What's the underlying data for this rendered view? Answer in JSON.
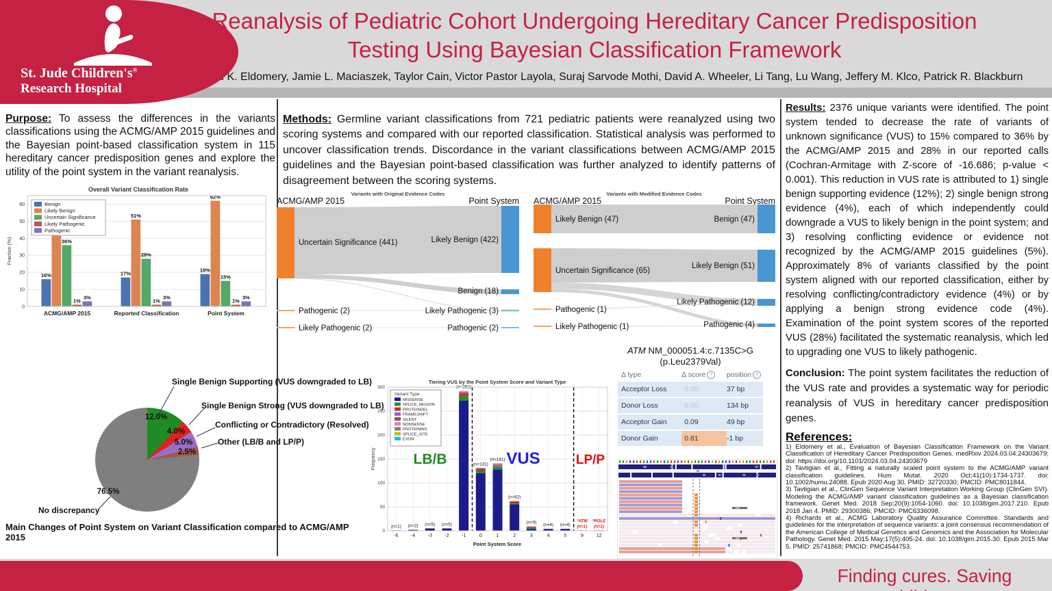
{
  "header": {
    "logo_line1": "St. Jude Children's",
    "logo_registered": "®",
    "logo_line2": "Research Hospital",
    "title_line1": "Reanalysis of Pediatric Cohort Undergoing Hereditary Cancer Predisposition",
    "title_line2": "Testing Using Bayesian Classification Framework",
    "authors": "Mohammad K. Eldomery, Jamie L. Maciaszek, Taylor Cain, Victor Pastor Layola, Suraj Sarvode Mothi, David A. Wheeler, Li Tang, Lu Wang, Jeffery M. Klco, Patrick R. Blackburn"
  },
  "sections": {
    "purpose_label": "Purpose:",
    "purpose_text": "To assess the differences in the variants classifications using the ACMG/AMP 2015 guidelines and the Bayesian point-based classification system in 115 hereditary cancer predisposition genes and explore the utility of the point system in the variant reanalysis.",
    "methods_label": "Methods:",
    "methods_text": "Germline variant classifications from 721 pediatric patients were reanalyzed using two scoring systems and compared with our reported classification. Statistical analysis was performed to uncover classification trends. Discordance in the variant classifications between ACMG/AMP 2015 guidelines and the Bayesian point-based classification was further analyzed to identify patterns of disagreement between the scoring systems.",
    "results_label": "Results:",
    "results_text": "2376 unique variants were identified. The point system tended to decrease the rate of variants of unknown significance (VUS) to 15% compared to 36% by the ACMG/AMP 2015 and 28% in our reported calls (Cochran-Armitage with Z-score of -16.686; p-value < 0.001). This reduction in VUS rate is attributed to 1) single benign supporting evidence (12%); 2) single benign strong evidence (4%), each of which independently could downgrade a VUS to likely benign in the point system; and 3) resolving conflicting evidence or evidence not recognized by the ACMG/AMP 2015 guidelines (5%). Approximately 8% of variants classified by the point system aligned with our reported classification, either by resolving conflicting/contradictory evidence (4%) or by applying a benign strong evidence code (4%). Examination of the point system scores of the reported VUS (28%) facilitated the systematic reanalysis, which led to upgrading one VUS to likely pathogenic.",
    "conclusion_label": "Conclusion:",
    "conclusion_text": "The point system facilitates the reduction of the VUS rate and provides a systematic way for periodic reanalysis of VUS in hereditary cancer predisposition genes.",
    "references_label": "References:",
    "references": [
      "1) Eldomery et al., Evaluation of Bayesian Classification Framework on the Variant Classification of Hereditary Cancer Predisposition Genes. medRxiv 2024.03.04.24303679; doi: https://doi.org/10.1101/2024.03.04.24303679",
      "2) Tavtigian et al., Fitting a naturally scaled point system to the ACMG/AMP variant classification guidelines. Hum Mutat. 2020 Oct;41(10):1734-1737. doi: 10.1002/humu.24088. Epub 2020 Aug 30. PMID: 32720330; PMCID: PMC8011844.",
      "3) Tavtigian et al., ClinGen Sequence Variant Interpretation Working Group (ClinGen SVI). Modeling the ACMG/AMP variant classification guidelines as a Bayesian classification framework. Genet Med. 2018 Sep;20(9):1054-1060. doi: 10.1038/gim.2017.210. Epub 2018 Jan 4. PMID: 29300386; PMCID: PMC6336098.",
      "4) Richards et al., ACMG Laboratory Quality Assurance Committee. Standards and guidelines for the interpretation of sequence variants: a joint consensus recommendation of the American College of Medical Genetics and Genomics and the Association for Molecular Pathology. Genet Med. 2015 May;17(5):405-24. doi: 10.1038/gim.2015.30. Epub 2015 Mar 5. PMID: 25741868; PMCID: PMC4544753."
    ]
  },
  "footer": {
    "tagline": "Finding cures. Saving children."
  },
  "colors": {
    "brand_red": "#c52143",
    "header_gray": "#d9d9d9",
    "divider_gray": "#b5b5b5"
  },
  "chart_data": [
    {
      "id": "overall_classification",
      "type": "bar",
      "title": "Overall Variant Classification Rate",
      "ylabel": "Fraction (%)",
      "ylim": [
        0,
        65
      ],
      "yticks": [
        0,
        10,
        20,
        30,
        40,
        50,
        60
      ],
      "categories": [
        "ACMG/AMP 2015",
        "Reported Classification",
        "Point System"
      ],
      "series": [
        {
          "name": "Benign",
          "color": "#4c72b0",
          "values": [
            16,
            17,
            19
          ]
        },
        {
          "name": "Likely Benign",
          "color": "#dd8452",
          "values": [
            44,
            51,
            62
          ]
        },
        {
          "name": "Uncertain Significance",
          "color": "#55a868",
          "values": [
            36,
            28,
            15
          ]
        },
        {
          "name": "Likely Pathogenic",
          "color": "#c44e52",
          "values": [
            1,
            1,
            1
          ]
        },
        {
          "name": "Pathogenic",
          "color": "#8172b3",
          "values": [
            3,
            3,
            3
          ]
        }
      ],
      "bar_label_suffix": "%",
      "legend_position": "upper left",
      "grid": true
    },
    {
      "id": "variants_original_codes",
      "type": "sankey",
      "title": "Variants with Original Evidence Codes",
      "left_title": "ACMG/AMP 2015",
      "right_title": "Point System",
      "left_nodes": [
        "Uncertain Significance (441)",
        "Pathogenic (2)",
        "Likely Pathogenic (2)"
      ],
      "right_nodes": [
        "Likely Benign (422)",
        "Benign (18)",
        "Likely Pathogenic (3)",
        "Pathogenic (2)"
      ],
      "flows": [
        [
          "Uncertain Significance",
          "Likely Benign"
        ],
        [
          "Uncertain Significance",
          "Benign"
        ],
        [
          "Uncertain Significance",
          "Likely Pathogenic"
        ],
        [
          "Pathogenic",
          "Likely Pathogenic"
        ],
        [
          "Likely Pathogenic",
          "Pathogenic"
        ]
      ]
    },
    {
      "id": "variants_modified_codes",
      "type": "sankey",
      "title": "Variants with Modified Evidence Codes",
      "left_title": "ACMG/AMP 2015",
      "right_title": "Point System",
      "left_nodes": [
        "Likely Benign (47)",
        "Uncertain Significance (65)",
        "Pathogenic (1)",
        "Likely Pathogenic (1)"
      ],
      "right_nodes": [
        "Benign (47)",
        "Likely Benign (51)",
        "Likely Pathogenic (12)",
        "Pathogenic (4)"
      ],
      "flows": [
        [
          "Likely Benign",
          "Benign"
        ],
        [
          "Uncertain Significance",
          "Likely Benign"
        ],
        [
          "Uncertain Significance",
          "Likely Pathogenic"
        ],
        [
          "Uncertain Significance",
          "Pathogenic"
        ],
        [
          "Pathogenic",
          "Likely Pathogenic"
        ],
        [
          "Likely Pathogenic",
          "Pathogenic"
        ]
      ]
    },
    {
      "id": "point_system_changes",
      "type": "pie",
      "title": "Main Changes of Point System on Variant Classification compared to ACMG/AMP 2015",
      "slices": [
        {
          "label": "Single Benign Supporting (VUS downgraded to LB)",
          "value": 12.0,
          "pct_label": "12.0%",
          "color": "#1f8b24"
        },
        {
          "label": "Single Benign Strong (VUS downgraded to LB)",
          "value": 4.0,
          "pct_label": "4.0%",
          "color": "#dd2222"
        },
        {
          "label": "Conflicting or Contradictory (Resolved)",
          "value": 5.0,
          "pct_label": "5.0%",
          "color": "#9a6fc3"
        },
        {
          "label": "Other (LB/B and LP/P)",
          "value": 2.5,
          "pct_label": "2.5%",
          "color": "#a05a4a"
        },
        {
          "label": "No discrepancy",
          "value": 76.5,
          "pct_label": "76.5%",
          "color": "#7f7f7f"
        }
      ]
    },
    {
      "id": "tiering_vus",
      "type": "stacked_bar",
      "title": "Tiering VUS by the Point System Score and Variant Type",
      "xlabel": "Point System Score",
      "ylabel": "Frequency",
      "ylim": [
        0,
        300
      ],
      "yticks": [
        0,
        50,
        100,
        150,
        200,
        250,
        300
      ],
      "legend_title": "Variant Type",
      "variant_types": [
        {
          "name": "MISSENSE",
          "color": "#1b1b8a"
        },
        {
          "name": "SPLICE_REGION",
          "color": "#2e8b2e"
        },
        {
          "name": "PROTEINDEL",
          "color": "#d62728"
        },
        {
          "name": "FRAMESHIFT",
          "color": "#9467bd"
        },
        {
          "name": "SILENT",
          "color": "#8c564b"
        },
        {
          "name": "NONSENSE",
          "color": "#e377c2"
        },
        {
          "name": "PROTEININS",
          "color": "#7f7f7f"
        },
        {
          "name": "SPLICE_SITE",
          "color": "#bcbd22"
        },
        {
          "name": "EXON",
          "color": "#17becf"
        }
      ],
      "regions": [
        {
          "label": "LB/B",
          "color": "#1f8b1f"
        },
        {
          "label": "VUS",
          "color": "#2020dd"
        },
        {
          "label": "LP/P",
          "color": "#e01010"
        }
      ],
      "bars": [
        {
          "score": "-6",
          "n": 1,
          "label": "(n=1)",
          "segments": {
            "MISSENSE": 1
          }
        },
        {
          "score": "-4",
          "n": 2,
          "label": "(n=2)",
          "segments": {
            "MISSENSE": 2
          }
        },
        {
          "score": "-3",
          "n": 5,
          "label": "(n=5)",
          "segments": {
            "MISSENSE": 5
          }
        },
        {
          "score": "-2",
          "n": 5,
          "label": "(n=5)",
          "segments": {
            "MISSENSE": 5
          }
        },
        {
          "score": "-1",
          "n": 292,
          "label": "(n=292)",
          "segments": {
            "MISSENSE": 272,
            "SPLICE_REGION": 10,
            "PROTEINDEL": 4,
            "SILENT": 3,
            "NONSENSE": 3
          }
        },
        {
          "score": "0",
          "n": 131,
          "label": "(n=131)",
          "segments": {
            "MISSENSE": 120,
            "SPLICE_REGION": 5,
            "PROTEINDEL": 3,
            "SILENT": 3
          }
        },
        {
          "score": "1",
          "n": 141,
          "label": "(n=141)",
          "segments": {
            "MISSENSE": 128,
            "SPLICE_REGION": 6,
            "NONSENSE": 3,
            "FRAMESHIFT": 2,
            "SILENT": 2
          }
        },
        {
          "score": "2",
          "n": 62,
          "label": "(n=62)",
          "segments": {
            "MISSENSE": 55,
            "PROTEINDEL": 3,
            "SPLICE_REGION": 2,
            "SILENT": 2
          }
        },
        {
          "score": "3",
          "n": 9,
          "label": "(n=9)",
          "segments": {
            "MISSENSE": 4,
            "SILENT": 3,
            "SPLICE_REGION": 2
          }
        },
        {
          "score": "4",
          "n": 4,
          "label": "(n=4)",
          "segments": {
            "MISSENSE": 4
          }
        },
        {
          "score": "5",
          "n": 4,
          "label": "(n=4)",
          "segments": {
            "MISSENSE": 4
          }
        },
        {
          "score": "9",
          "n": 1,
          "label": "(n=1)",
          "annotation": "*ATM",
          "segments": {
            "MISSENSE": 1
          }
        },
        {
          "score": "12",
          "n": 1,
          "label": "(n=1)",
          "annotation": "*POLE",
          "segments": {
            "MISSENSE": 1
          }
        }
      ]
    },
    {
      "id": "spliceai_scores",
      "type": "table",
      "gene": "ATM",
      "title_rest": " NM_000051.4:c.7135C>G",
      "subtitle": "(p.Leu2379Val)",
      "help_glyph": "?",
      "columns": [
        {
          "label": "Δ type",
          "help": false
        },
        {
          "label": "Δ score",
          "help": true
        },
        {
          "label": "position",
          "help": true
        }
      ],
      "rows": [
        {
          "type": "Acceptor Loss",
          "score": "0.00",
          "position": "37 bp",
          "muted": true
        },
        {
          "type": "Donor Loss",
          "score": "0.00",
          "position": "134 bp",
          "muted": true
        },
        {
          "type": "Acceptor Gain",
          "score": "0.09",
          "position": "49 bp",
          "muted": false
        },
        {
          "type": "Donor Gain",
          "score": "0.81",
          "position": "-1 bp",
          "muted": false,
          "highlight": true
        }
      ]
    }
  ]
}
